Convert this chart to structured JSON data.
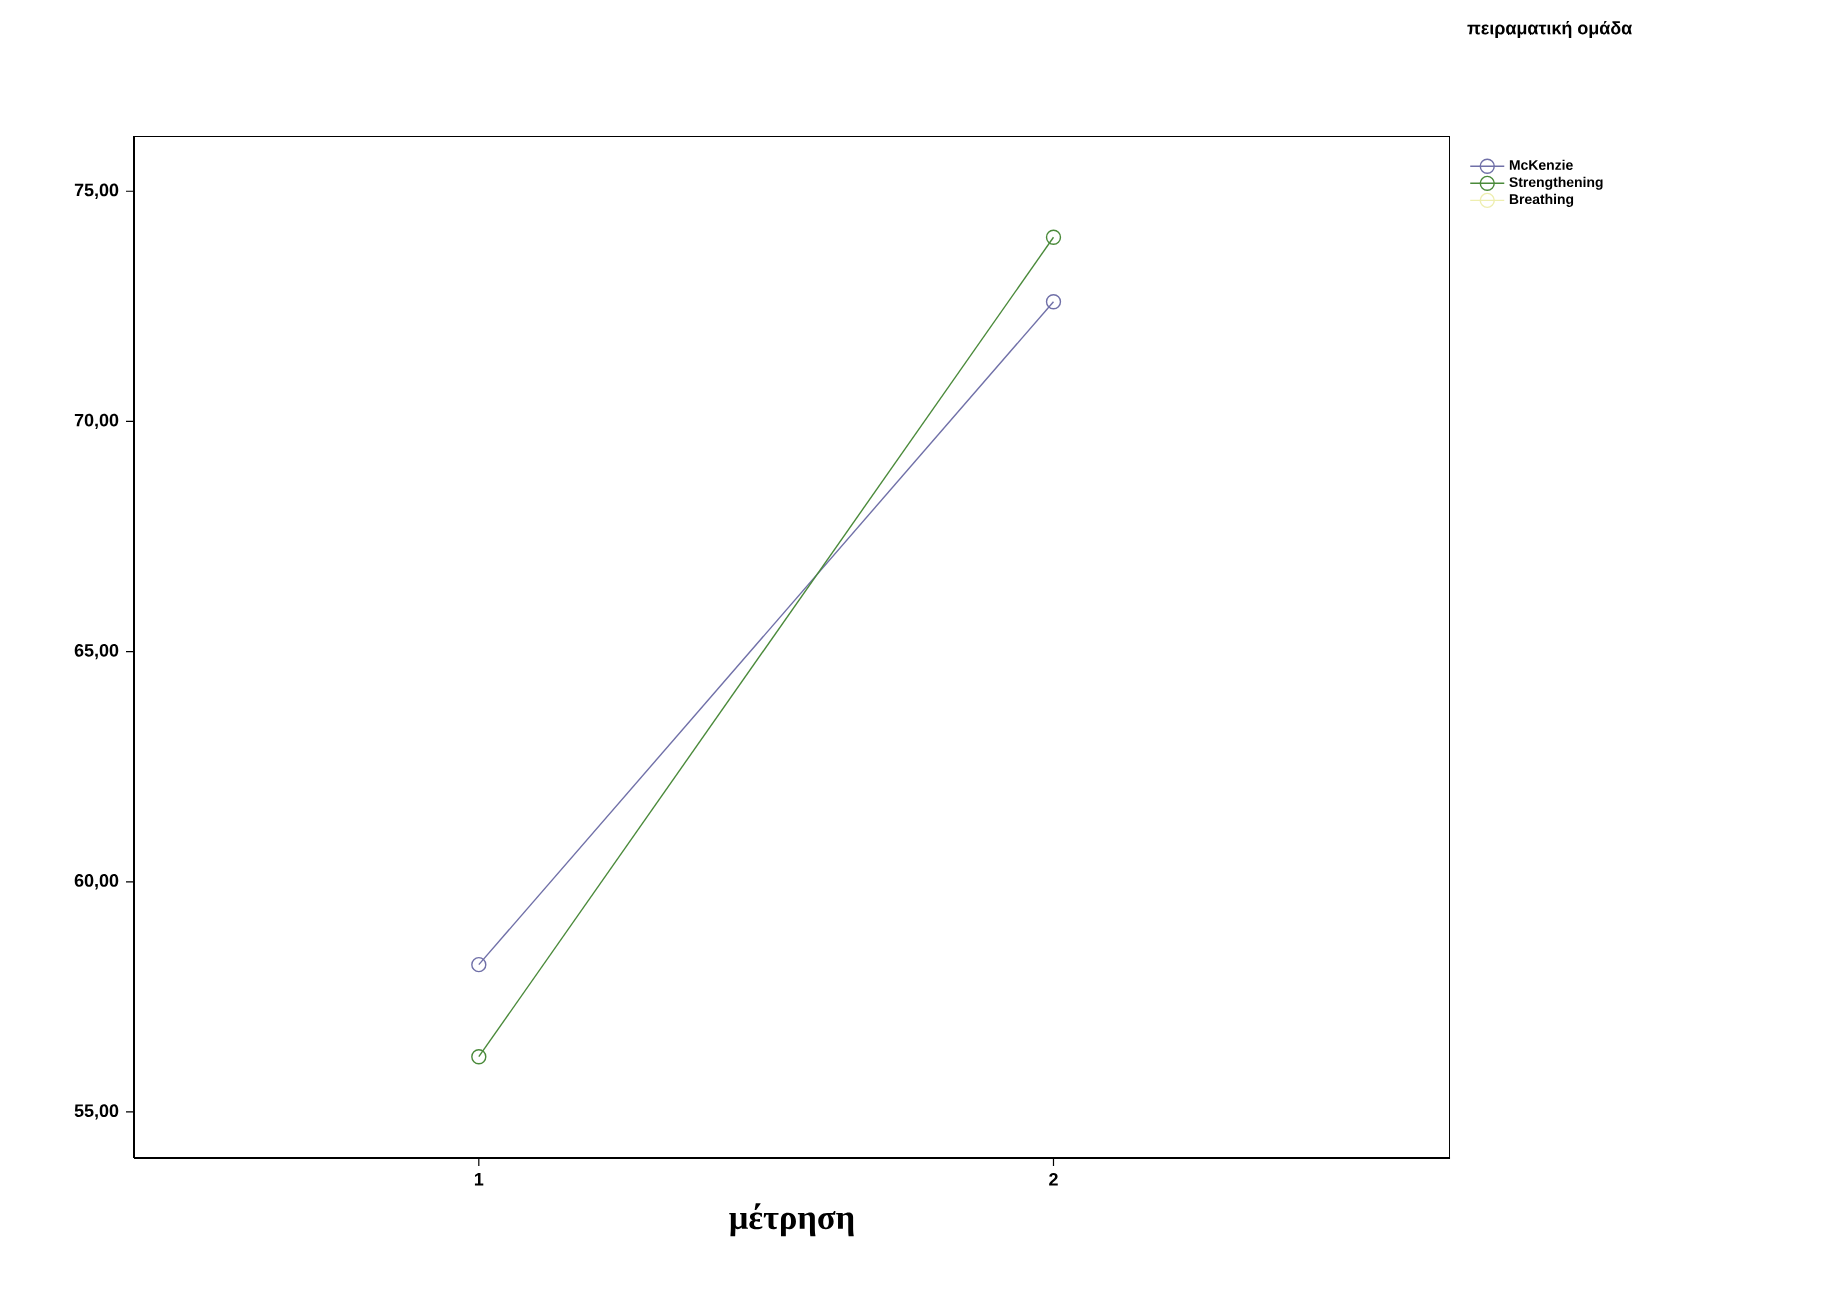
{
  "chart_data": {
    "type": "line",
    "xlabel": "μέτρηση",
    "legend_title": "πειραματική ομάδα",
    "categories": [
      "1",
      "2"
    ],
    "series": [
      {
        "name": "McKenzie",
        "color": "#7070a8",
        "values": [
          58.2,
          72.6
        ]
      },
      {
        "name": "Strengthening",
        "color": "#4a8a3a",
        "values": [
          56.2,
          74.0
        ]
      },
      {
        "name": "Breathing",
        "color": "#eeeeb0",
        "values": [
          null,
          null
        ]
      }
    ],
    "ylim": [
      54,
      76.2
    ],
    "yticks": [
      {
        "value": 55,
        "label": "55,00"
      },
      {
        "value": 60,
        "label": "60,00"
      },
      {
        "value": 65,
        "label": "65,00"
      },
      {
        "value": 70,
        "label": "70,00"
      },
      {
        "value": 75,
        "label": "75,00"
      }
    ],
    "grid": false,
    "legend": "top right",
    "marker": "circle",
    "line_style": "solid"
  }
}
